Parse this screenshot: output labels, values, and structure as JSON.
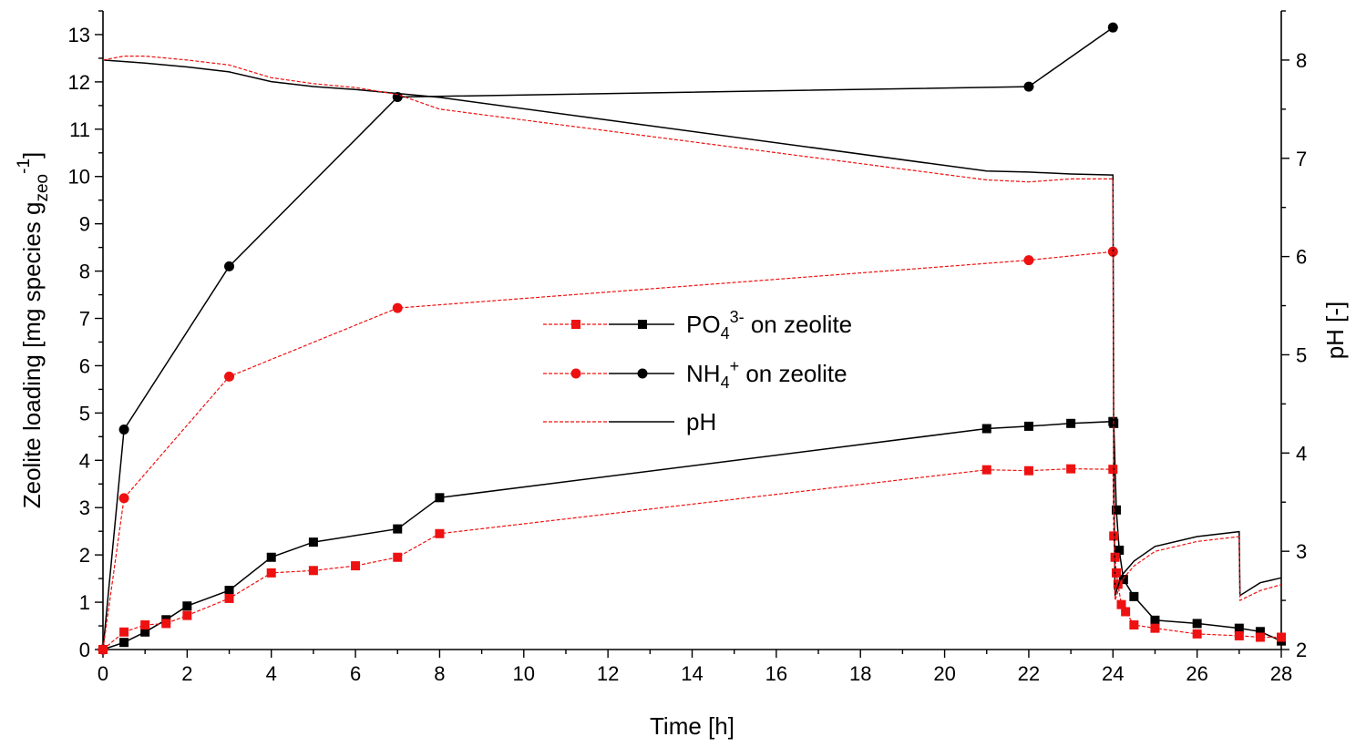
{
  "chart_data": {
    "type": "line",
    "xlabel": "Time [h]",
    "ylabel": "Zeolite loading [mg species g",
    "ylabel_sub": "zeo",
    "ylabel_sup": "-1",
    "ylabel_end": "]",
    "y2label": "pH [-]",
    "xlim": [
      0,
      28
    ],
    "ylim": [
      0,
      13.5
    ],
    "y2lim": [
      2,
      8.5
    ],
    "x_ticks": [
      "0",
      "2",
      "4",
      "6",
      "8",
      "10",
      "12",
      "14",
      "16",
      "18",
      "20",
      "22",
      "24",
      "26",
      "28"
    ],
    "y_ticks": [
      "0",
      "1",
      "2",
      "3",
      "4",
      "5",
      "6",
      "7",
      "8",
      "9",
      "10",
      "11",
      "12",
      "13"
    ],
    "y2_ticks": [
      "2",
      "3",
      "4",
      "5",
      "6",
      "7",
      "8"
    ],
    "grid": false,
    "legend": {
      "position": "center",
      "entries": [
        {
          "text": "PO",
          "sub": "4",
          "sup": "3-",
          "rest": " on zeolite"
        },
        {
          "text": "NH",
          "sub": "4",
          "sup": "+",
          "rest": " on zeolite"
        },
        {
          "text": "pH",
          "sub": "",
          "sup": "",
          "rest": ""
        }
      ]
    },
    "colors": {
      "black": "#000000",
      "red": "#ee1111"
    },
    "series": [
      {
        "name": "PO4 3- on zeolite (black)",
        "axis": "left",
        "color": "#000000",
        "marker": "square",
        "dashed": false,
        "x": [
          0,
          0.5,
          1,
          1.5,
          2,
          3,
          4,
          5,
          7,
          8,
          21,
          22,
          23,
          24,
          24.02,
          24.08,
          24.15,
          24.25,
          24.5,
          25,
          26,
          27,
          27.5,
          28
        ],
        "y": [
          0,
          0.15,
          0.37,
          0.63,
          0.92,
          1.25,
          1.95,
          2.27,
          2.55,
          3.21,
          4.67,
          4.72,
          4.78,
          4.82,
          4.78,
          2.95,
          2.1,
          1.48,
          1.12,
          0.62,
          0.55,
          0.45,
          0.38,
          0.18
        ]
      },
      {
        "name": "PO4 3- on zeolite (red)",
        "axis": "left",
        "color": "#ee1111",
        "marker": "square",
        "dashed": true,
        "x": [
          0,
          0.5,
          1,
          1.5,
          2,
          3,
          4,
          5,
          6,
          7,
          8,
          21,
          22,
          23,
          24,
          24.02,
          24.05,
          24.08,
          24.12,
          24.2,
          24.3,
          24.5,
          25,
          26,
          27,
          27.5,
          28
        ],
        "y": [
          0,
          0.37,
          0.52,
          0.55,
          0.72,
          1.08,
          1.62,
          1.67,
          1.77,
          1.95,
          2.45,
          3.8,
          3.78,
          3.82,
          3.81,
          2.4,
          1.95,
          1.62,
          1.38,
          0.95,
          0.8,
          0.52,
          0.45,
          0.33,
          0.29,
          0.26,
          0.26
        ]
      },
      {
        "name": "NH4+ on zeolite (black)",
        "axis": "left",
        "color": "#000000",
        "marker": "circle",
        "dashed": false,
        "x": [
          0,
          0.5,
          3,
          7,
          22,
          24
        ],
        "y": [
          0,
          4.65,
          8.1,
          11.68,
          11.9,
          13.15
        ]
      },
      {
        "name": "NH4+ on zeolite (red)",
        "axis": "left",
        "color": "#ee1111",
        "marker": "circle",
        "dashed": true,
        "x": [
          0,
          0.5,
          3,
          7,
          22,
          24
        ],
        "y": [
          0,
          3.2,
          5.77,
          7.22,
          8.23,
          8.41
        ]
      },
      {
        "name": "pH (black)",
        "axis": "right",
        "color": "#000000",
        "marker": "none",
        "dashed": false,
        "x": [
          0,
          1,
          2,
          3,
          4,
          5,
          6,
          7,
          8,
          21,
          22,
          23,
          24,
          24.02,
          24.05,
          24.2,
          24.5,
          25,
          26,
          27,
          27.02,
          27.5,
          28
        ],
        "y": [
          8.0,
          7.97,
          7.93,
          7.88,
          7.78,
          7.73,
          7.7,
          7.66,
          7.62,
          6.87,
          6.86,
          6.84,
          6.83,
          3.8,
          2.55,
          2.75,
          2.9,
          3.05,
          3.15,
          3.2,
          2.55,
          2.68,
          2.73
        ]
      },
      {
        "name": "pH (red)",
        "axis": "right",
        "color": "#ee1111",
        "marker": "none",
        "dashed": true,
        "x": [
          0,
          0.5,
          1,
          2,
          3,
          4,
          5,
          6,
          7,
          8,
          21,
          22,
          23,
          24,
          24.02,
          24.05,
          24.2,
          24.5,
          25,
          26,
          27,
          27.02,
          27.5,
          28
        ],
        "y": [
          8.0,
          8.04,
          8.04,
          8.0,
          7.95,
          7.82,
          7.76,
          7.72,
          7.65,
          7.5,
          6.78,
          6.76,
          6.79,
          6.79,
          3.6,
          2.5,
          2.7,
          2.85,
          3.0,
          3.1,
          3.15,
          2.5,
          2.6,
          2.66
        ]
      }
    ]
  }
}
